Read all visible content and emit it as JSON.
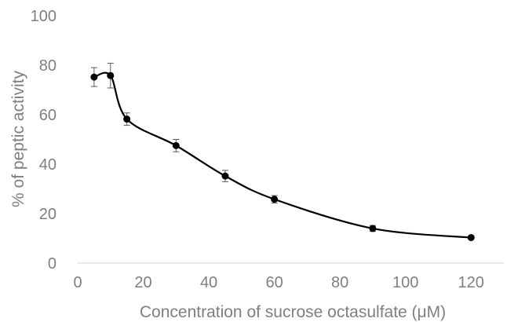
{
  "chart_data": {
    "type": "scatter",
    "title": "",
    "xlabel": "Concentration of sucrose octasulfate (μM)",
    "ylabel": "% of peptic activity",
    "xlim": [
      0,
      130
    ],
    "ylim": [
      0,
      100
    ],
    "x_ticks": [
      0,
      20,
      40,
      60,
      80,
      100,
      120
    ],
    "y_ticks": [
      0,
      20,
      40,
      60,
      80,
      100
    ],
    "grid": false,
    "legend": "none",
    "smoothed_line": true,
    "error_bars": true,
    "series": [
      {
        "x": [
          5,
          10,
          15,
          30,
          45,
          60,
          90,
          120
        ],
        "y": [
          75.2,
          75.8,
          58.2,
          47.5,
          35.2,
          25.8,
          14.0,
          10.3
        ],
        "error": [
          3.8,
          5.0,
          2.5,
          2.5,
          2.3,
          1.5,
          1.2,
          0.5
        ]
      }
    ],
    "colors": {
      "line": "#000000",
      "marker": "#000000",
      "error": "#595959",
      "axis": "#d9d9d9",
      "text": "#7f7f7f"
    }
  }
}
